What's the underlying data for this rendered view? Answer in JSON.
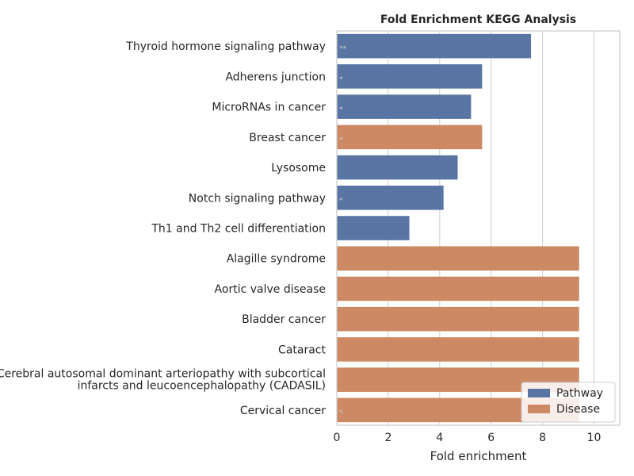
{
  "chart_data": {
    "type": "bar",
    "orientation": "horizontal",
    "title": "Fold Enrichment KEGG Analysis",
    "xlabel": "Fold enrichment",
    "ylabel": "",
    "xlim": [
      0,
      11
    ],
    "xticks": [
      0,
      2,
      4,
      6,
      8,
      10
    ],
    "grid": true,
    "legend_position": "bottom-right",
    "colors": {
      "Pathway": "#5875a4",
      "Disease": "#cc8963"
    },
    "series": [
      {
        "name": "Pathway"
      },
      {
        "name": "Disease"
      }
    ],
    "bars": [
      {
        "label": "Thyroid hormone signaling pathway",
        "value": 7.55,
        "group": "Pathway",
        "marker": "**"
      },
      {
        "label": "Adherens junction",
        "value": 5.65,
        "group": "Pathway",
        "marker": "*"
      },
      {
        "label": "MicroRNAs in cancer",
        "value": 5.22,
        "group": "Pathway",
        "marker": "*"
      },
      {
        "label": "Breast cancer",
        "value": 5.65,
        "group": "Disease",
        "marker": "*"
      },
      {
        "label": "Lysosome",
        "value": 4.7,
        "group": "Pathway",
        "marker": ""
      },
      {
        "label": "Notch signaling pathway",
        "value": 4.15,
        "group": "Pathway",
        "marker": "*"
      },
      {
        "label": "Th1 and Th2 cell differentiation",
        "value": 2.82,
        "group": "Pathway",
        "marker": ""
      },
      {
        "label": "Alagille syndrome",
        "value": 9.42,
        "group": "Disease",
        "marker": ""
      },
      {
        "label": "Aortic valve disease",
        "value": 9.42,
        "group": "Disease",
        "marker": ""
      },
      {
        "label": "Bladder cancer",
        "value": 9.42,
        "group": "Disease",
        "marker": ""
      },
      {
        "label": "Cataract",
        "value": 9.42,
        "group": "Disease",
        "marker": ""
      },
      {
        "label": [
          "Cerebral autosomal dominant arteriopathy with subcortical",
          "infarcts and leucoencephalopathy (CADASIL)"
        ],
        "value": 9.42,
        "group": "Disease",
        "marker": ""
      },
      {
        "label": "Cervical cancer",
        "value": 9.42,
        "group": "Disease",
        "marker": "*"
      }
    ]
  }
}
